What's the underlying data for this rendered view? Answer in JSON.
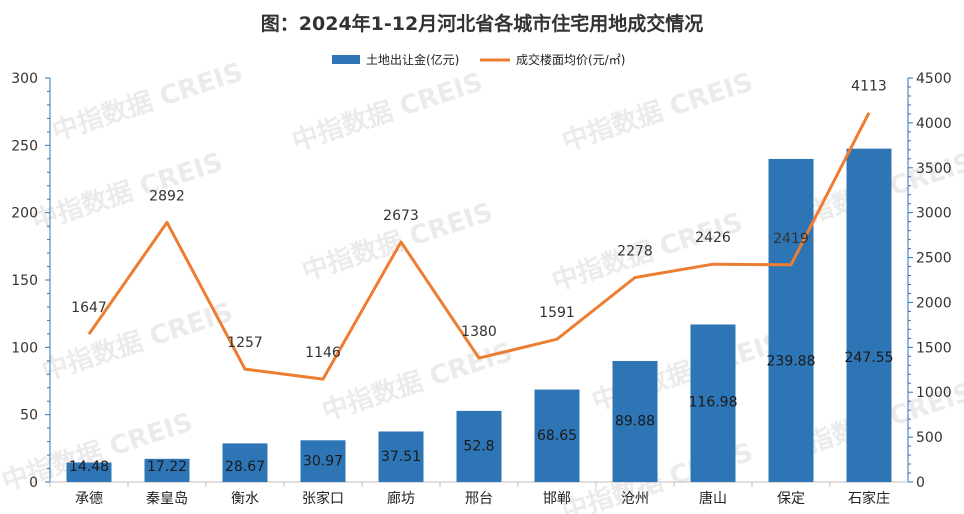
{
  "chart_data": {
    "type": "bar",
    "title": "图：2024年1-12月河北省各城市住宅用地成交情况",
    "categories": [
      "承德",
      "秦皇岛",
      "衡水",
      "张家口",
      "廊坊",
      "邢台",
      "邯郸",
      "沧州",
      "唐山",
      "保定",
      "石家庄"
    ],
    "series": [
      {
        "name": "土地出让金(亿元)",
        "type": "bar",
        "axis": "left",
        "color": "#2e75b6",
        "values": [
          14.48,
          17.22,
          28.67,
          30.97,
          37.51,
          52.8,
          68.65,
          89.88,
          116.98,
          239.88,
          247.55
        ],
        "labels": [
          "14.48",
          "17.22",
          "28.67",
          "30.97",
          "37.51",
          "52.8",
          "68.65",
          "89.88",
          "116.98",
          "239.88",
          "247.55"
        ]
      },
      {
        "name": "成交楼面均价(元/㎡)",
        "type": "line",
        "axis": "right",
        "color": "#ed7d31",
        "values": [
          1647,
          2892,
          1257,
          1146,
          2673,
          1380,
          1591,
          2278,
          2426,
          2419,
          4113
        ],
        "labels": [
          "1647",
          "2892",
          "1257",
          "1146",
          "2673",
          "1380",
          "1591",
          "2278",
          "2426",
          "2419",
          "4113"
        ]
      }
    ],
    "y_left": {
      "min": 0,
      "max": 300,
      "ticks": [
        "0",
        "50",
        "100",
        "150",
        "200",
        "250",
        "300"
      ]
    },
    "y_right": {
      "min": 0,
      "max": 4500,
      "ticks": [
        "0",
        "500",
        "1000",
        "1500",
        "2000",
        "2500",
        "3000",
        "3500",
        "4000",
        "4500"
      ]
    },
    "legend_position": "top-center",
    "grid": false
  },
  "watermark": "中指数据 CREIS"
}
